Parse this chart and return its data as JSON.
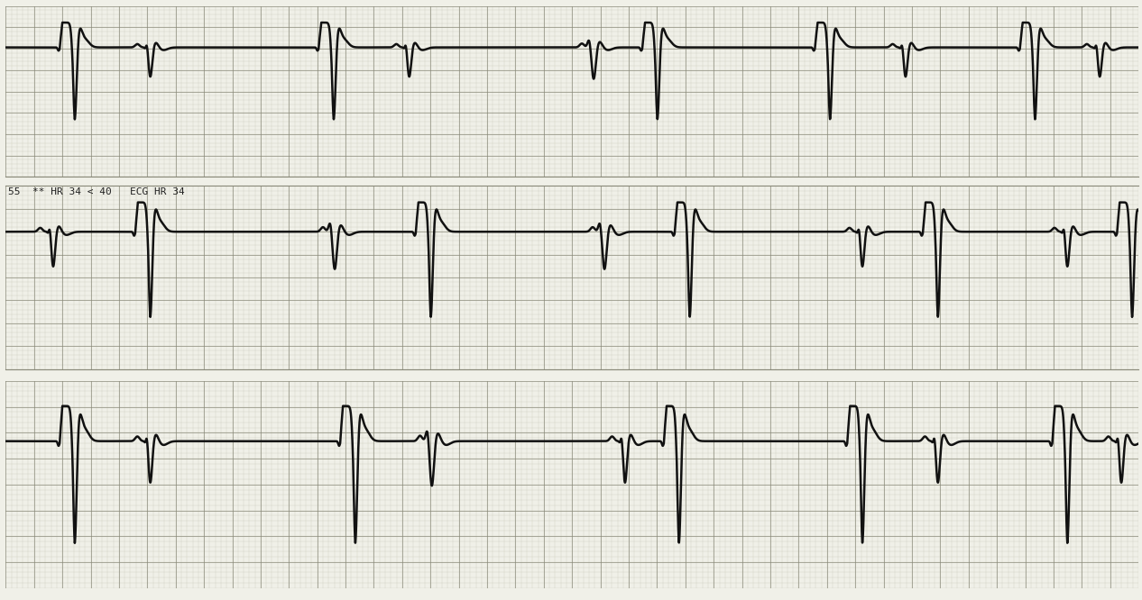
{
  "fig_width": 12.66,
  "fig_height": 6.66,
  "dpi": 100,
  "bg_color": "#f0f0e8",
  "paper_color": "#f4f4ec",
  "grid_minor_color": "#b8b8a8",
  "grid_major_color": "#888878",
  "ecg_color": "#111111",
  "ecg_linewidth": 1.8,
  "strip_label": "55  ** HR 34 < 40   ECG HR 34",
  "label_fontsize": 8,
  "separator_color": "#888878"
}
